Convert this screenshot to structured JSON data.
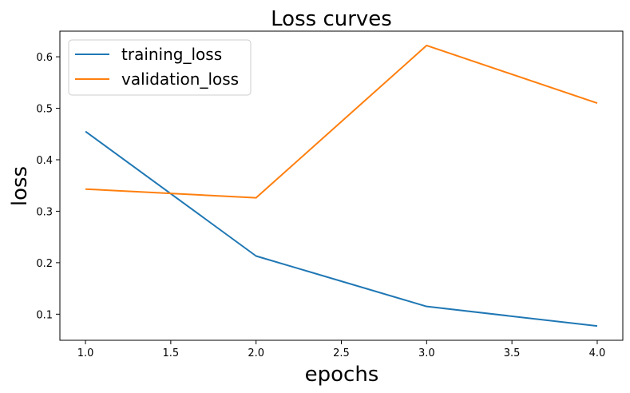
{
  "chart_data": {
    "type": "line",
    "title": "Loss curves",
    "xlabel": "epochs",
    "ylabel": "loss",
    "x": [
      1.0,
      2.0,
      3.0,
      4.0
    ],
    "series": [
      {
        "name": "training_loss",
        "values": [
          0.455,
          0.213,
          0.115,
          0.077
        ],
        "color": "#1f77b4"
      },
      {
        "name": "validation_loss",
        "values": [
          0.343,
          0.326,
          0.622,
          0.51
        ],
        "color": "#ff7f0e"
      }
    ],
    "xlim": [
      0.85,
      4.15
    ],
    "ylim": [
      0.0493,
      0.6498
    ],
    "xticks": [
      {
        "value": 1.0,
        "label": "1.0"
      },
      {
        "value": 1.5,
        "label": "1.5"
      },
      {
        "value": 2.0,
        "label": "2.0"
      },
      {
        "value": 2.5,
        "label": "2.5"
      },
      {
        "value": 3.0,
        "label": "3.0"
      },
      {
        "value": 3.5,
        "label": "3.5"
      },
      {
        "value": 4.0,
        "label": "4.0"
      }
    ],
    "yticks": [
      {
        "value": 0.1,
        "label": "0.1"
      },
      {
        "value": 0.2,
        "label": "0.2"
      },
      {
        "value": 0.3,
        "label": "0.3"
      },
      {
        "value": 0.4,
        "label": "0.4"
      },
      {
        "value": 0.5,
        "label": "0.5"
      },
      {
        "value": 0.6,
        "label": "0.6"
      }
    ],
    "grid": false,
    "legend_position": "top-left"
  }
}
